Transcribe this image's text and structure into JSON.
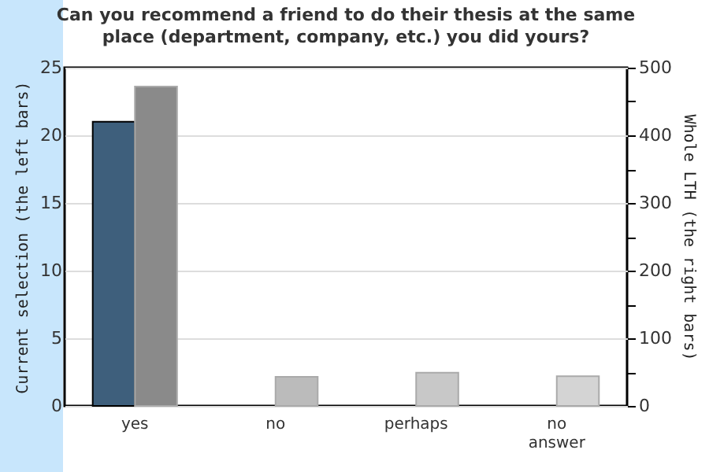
{
  "chart_data": {
    "type": "bar",
    "title": "Can you recommend a friend to do their thesis at the same place (department, company, etc.) you did yours?",
    "ylabel": "Current selection (the left bars)",
    "y2label": "Whole LTH (the right bars)",
    "categories": [
      "yes",
      "no",
      "perhaps",
      "no answer"
    ],
    "series": [
      {
        "color": "#3e5f7c",
        "values": [
          21,
          null,
          null,
          null
        ]
      },
      {
        "axis": "y2",
        "colors": [
          "#8a8a8a",
          "#bbbbbb",
          "#c8c8c8",
          "#d4d4d4"
        ],
        "values": [
          472,
          43,
          49,
          44
        ]
      }
    ],
    "ylim": [
      0,
      25
    ],
    "yticks": [
      0,
      5,
      10,
      15,
      20,
      25
    ],
    "y2lim": [
      0,
      500
    ],
    "y2ticks": [
      0,
      {
        "value": 50,
        "label": null
      },
      100,
      {
        "value": 150,
        "label": null
      },
      200,
      {
        "value": 250,
        "label": null
      },
      300,
      {
        "value": 350,
        "label": null
      },
      400,
      {
        "value": 450,
        "label": null
      },
      500
    ],
    "grid": "y"
  }
}
